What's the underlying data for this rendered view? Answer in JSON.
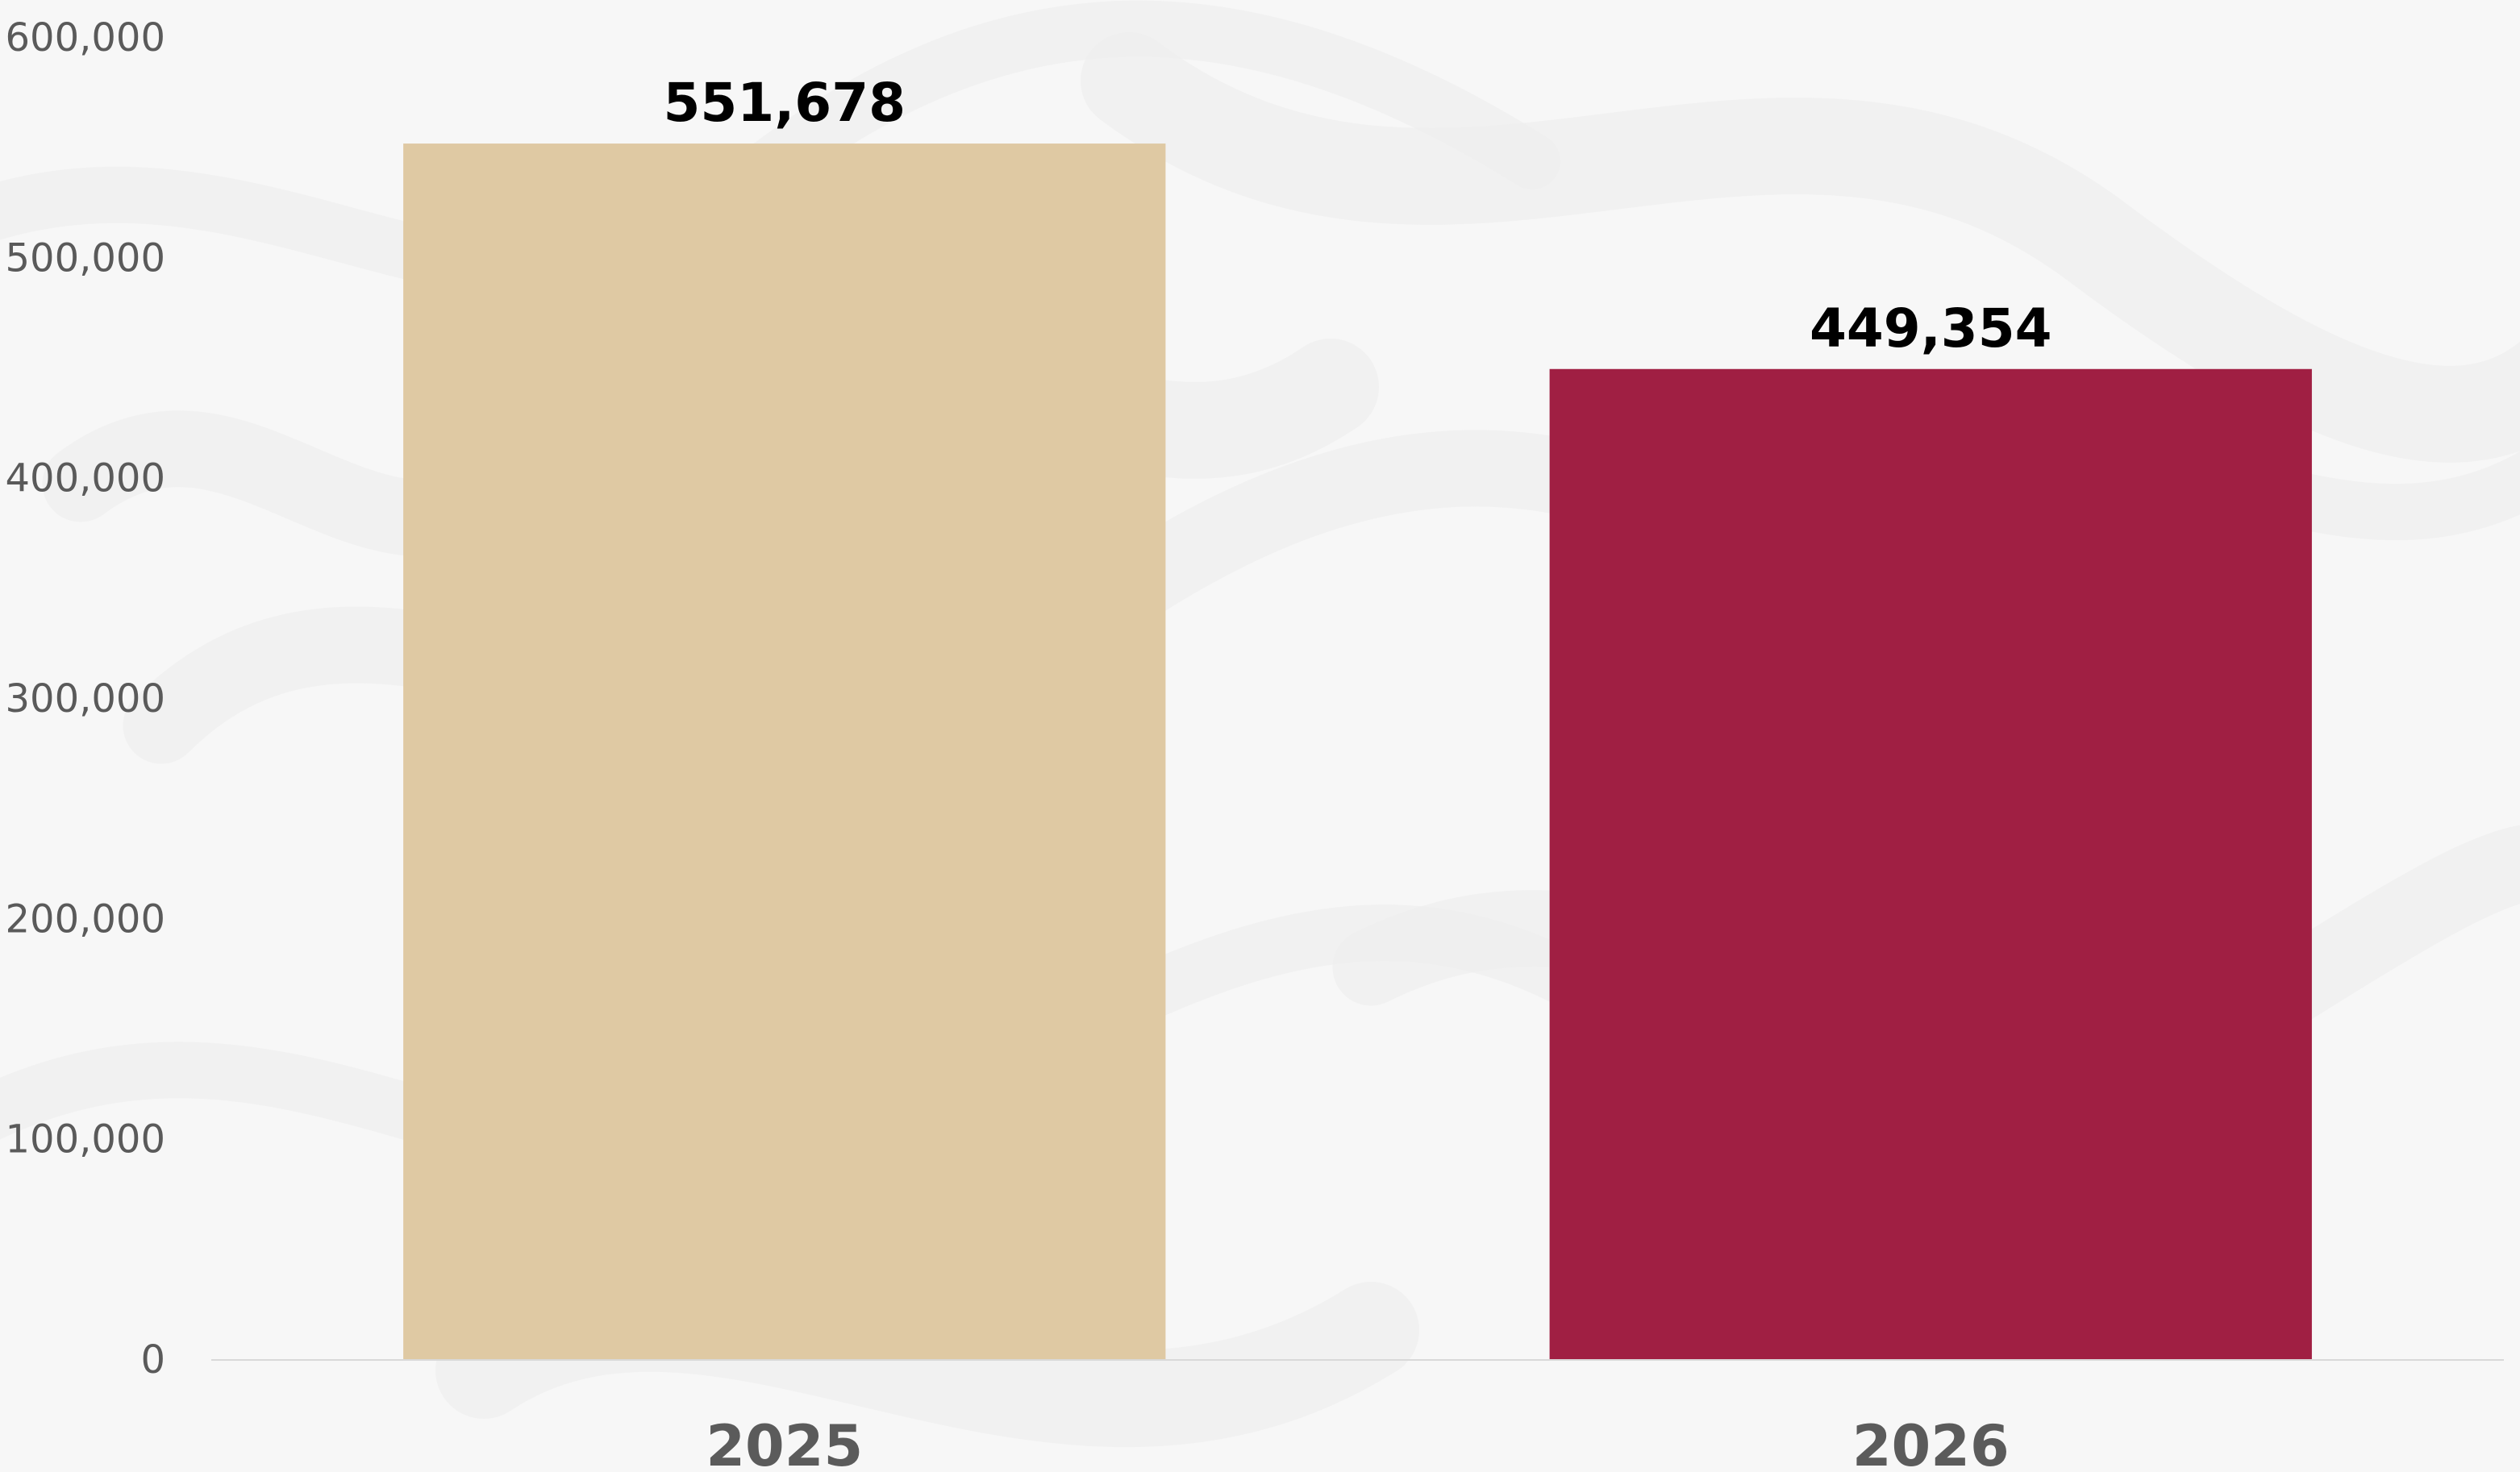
{
  "chart_data": {
    "type": "bar",
    "categories": [
      "2025",
      "2026"
    ],
    "values": [
      551678,
      449354
    ],
    "value_labels": [
      "551,678",
      "449,354"
    ],
    "bar_colors": [
      "#dfc9a3",
      "#a01f43"
    ],
    "ylim": [
      0,
      600000
    ],
    "yticks": [
      0,
      100000,
      200000,
      300000,
      400000,
      500000,
      600000
    ],
    "ytick_labels": [
      "0",
      "100,000",
      "200,000",
      "300,000",
      "400,000",
      "500,000",
      "600,000"
    ],
    "grid": false,
    "title": "",
    "xlabel": "",
    "ylabel": ""
  },
  "colors": {
    "background": "#f7f7f7",
    "background_pattern": "#ececec",
    "baseline": "#d9d9d9"
  }
}
